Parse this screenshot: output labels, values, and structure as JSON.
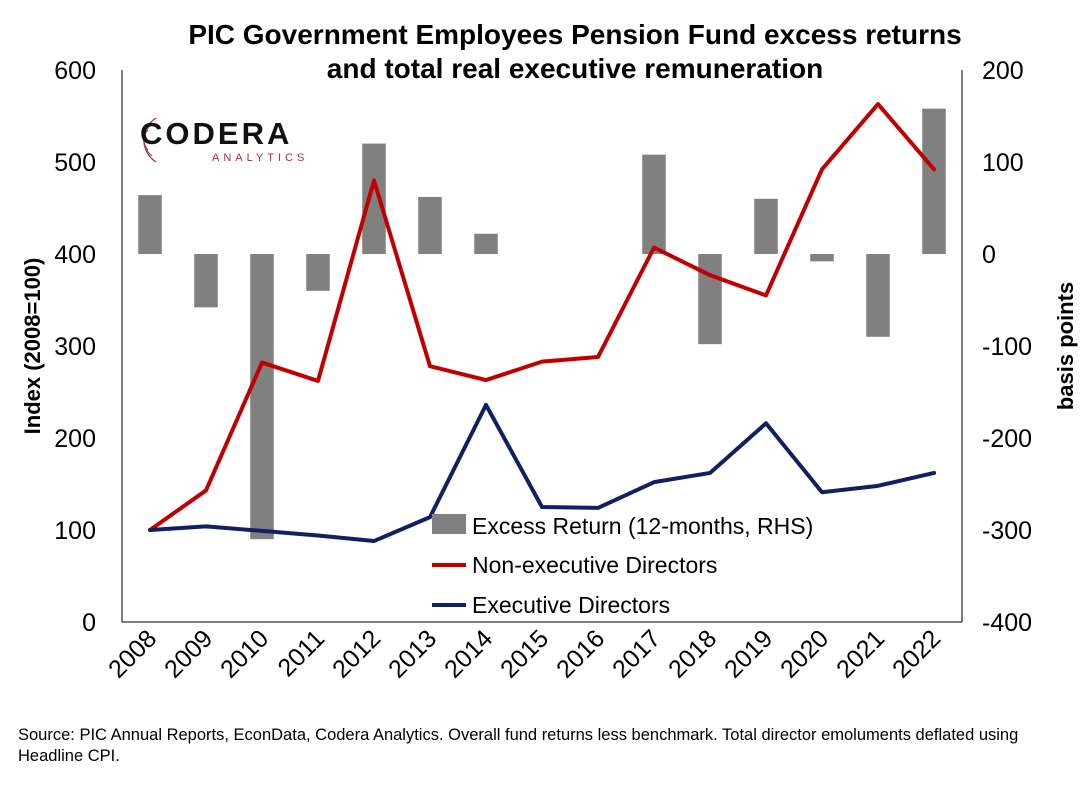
{
  "title_line1": "PIC Government Employees Pension Fund excess returns",
  "title_line2": "and total real executive remuneration",
  "logo": {
    "name": "CODERA",
    "sub": "ANALYTICS"
  },
  "source": "Source: PIC Annual Reports, EconData, Codera Analytics. Overall fund returns less benchmark. Total director emoluments deflated using Headline CPI.",
  "chart_data": {
    "type": "bar+line",
    "categories": [
      "2008",
      "2009",
      "2010",
      "2011",
      "2012",
      "2013",
      "2014",
      "2015",
      "2016",
      "2017",
      "2018",
      "2019",
      "2020",
      "2021",
      "2022"
    ],
    "y_left": {
      "label": "Index (2008=100)",
      "range": [
        0,
        600
      ],
      "ticks": [
        0,
        100,
        200,
        300,
        400,
        500,
        600
      ]
    },
    "y_right": {
      "label": "basis points",
      "range": [
        -400,
        200
      ],
      "ticks": [
        -400,
        -300,
        -200,
        -100,
        0,
        100,
        200
      ]
    },
    "series": [
      {
        "name": "Excess Return (12-months, RHS)",
        "type": "bar",
        "axis": "right",
        "color": "#808080",
        "values": [
          64,
          -58,
          -310,
          -40,
          120,
          62,
          22,
          null,
          null,
          108,
          -98,
          60,
          -8,
          -90,
          158
        ]
      },
      {
        "name": "Non-executive Directors",
        "type": "line",
        "axis": "left",
        "color": "#c00000",
        "values": [
          100,
          143,
          282,
          262,
          480,
          278,
          263,
          283,
          288,
          407,
          377,
          355,
          492,
          563,
          492
        ]
      },
      {
        "name": "Executive Directors",
        "type": "line",
        "axis": "left",
        "color": "#102060",
        "values": [
          100,
          104,
          99,
          94,
          88,
          114,
          236,
          125,
          124,
          152,
          162,
          216,
          141,
          148,
          162
        ]
      }
    ],
    "grid": false,
    "legend_position": "bottom-center"
  }
}
